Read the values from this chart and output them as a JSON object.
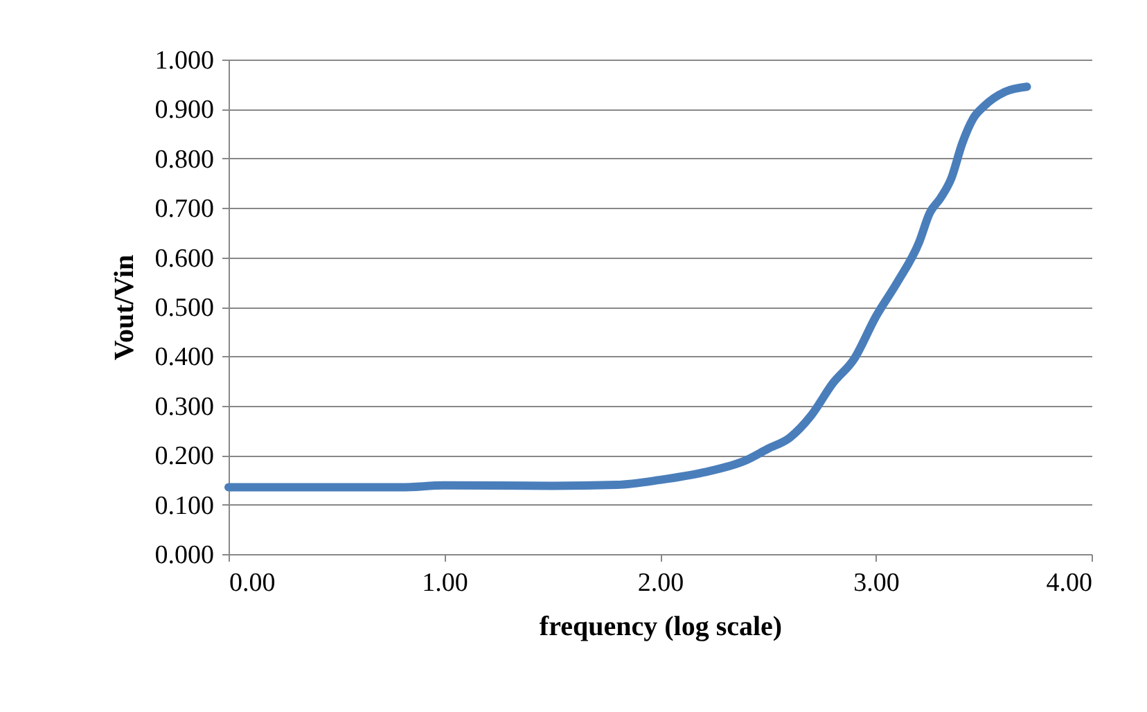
{
  "chart_data": {
    "type": "line",
    "xlabel": "frequency (log scale)",
    "ylabel": "Vout/Vin",
    "x": [
      0,
      0.4,
      0.8,
      1.0,
      1.5,
      1.8,
      2.0,
      2.2,
      2.4,
      2.5,
      2.6,
      2.7,
      2.8,
      2.9,
      3.0,
      3.1,
      3.2,
      3.25,
      3.3,
      3.35,
      3.4,
      3.45,
      3.5,
      3.6,
      3.7
    ],
    "series": [
      {
        "color": "#4a7ebb",
        "values": [
          0.135,
          0.135,
          0.135,
          0.139,
          0.138,
          0.14,
          0.15,
          0.165,
          0.19,
          0.213,
          0.235,
          0.28,
          0.345,
          0.395,
          0.48,
          0.55,
          0.63,
          0.69,
          0.72,
          0.76,
          0.83,
          0.88,
          0.905,
          0.935,
          0.945
        ]
      }
    ],
    "xlim": [
      0,
      4
    ],
    "ylim": [
      0,
      1
    ],
    "xticks": [
      {
        "value": 0,
        "label": "0.00"
      },
      {
        "value": 1,
        "label": "1.00"
      },
      {
        "value": 2,
        "label": "2.00"
      },
      {
        "value": 3,
        "label": "3.00"
      },
      {
        "value": 4,
        "label": "4.00"
      }
    ],
    "yticks": [
      {
        "value": 0,
        "label": "0.000"
      },
      {
        "value": 0.1,
        "label": "0.100"
      },
      {
        "value": 0.2,
        "label": "0.200"
      },
      {
        "value": 0.3,
        "label": "0.300"
      },
      {
        "value": 0.4,
        "label": "0.400"
      },
      {
        "value": 0.5,
        "label": "0.500"
      },
      {
        "value": 0.6,
        "label": "0.600"
      },
      {
        "value": 0.7,
        "label": "0.700"
      },
      {
        "value": 0.8,
        "label": "0.800"
      },
      {
        "value": 0.9,
        "label": "0.900"
      },
      {
        "value": 1,
        "label": "1.000"
      }
    ],
    "grid": "y",
    "marker": "none",
    "line_style": "solid"
  }
}
